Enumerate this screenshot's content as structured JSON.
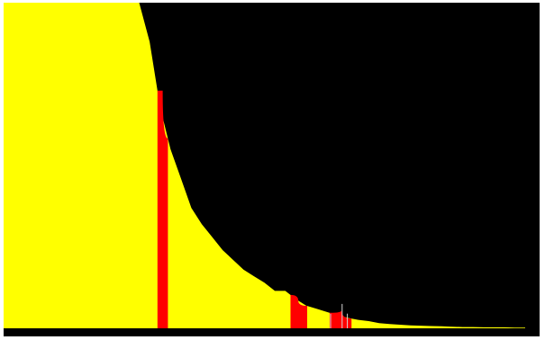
{
  "chart_data": {
    "type": "area",
    "title": "",
    "xlabel": "",
    "ylabel": "",
    "legend": "none",
    "grid": false,
    "colors": {
      "background": "#000000",
      "frame": "#ffffff",
      "baseline": "#000000",
      "spectrum": "#ffff00",
      "peaks": "#ff0000",
      "markers": "#d9d9d9"
    },
    "x": [
      0,
      0.02,
      0.04,
      0.06,
      0.08,
      0.1,
      0.12,
      0.14,
      0.16,
      0.18,
      0.2,
      0.22,
      0.24,
      0.26,
      0.28,
      0.3,
      0.32,
      0.34,
      0.36,
      0.38,
      0.4,
      0.42,
      0.44,
      0.46,
      0.48,
      0.5,
      0.52,
      0.54,
      0.56,
      0.58,
      0.6,
      0.62,
      0.64,
      0.66,
      0.68,
      0.7,
      0.72,
      0.74,
      0.76,
      0.78,
      0.8,
      0.82,
      0.84,
      0.86,
      0.88,
      0.9,
      0.92,
      0.94,
      0.96,
      0.98,
      1.0
    ],
    "series": [
      {
        "values": [
          1.0,
          1.0,
          1.0,
          1.0,
          1.0,
          1.0,
          1.0,
          1.0,
          1.0,
          1.0,
          1.0,
          1.0,
          1.0,
          1.0,
          0.88,
          0.68,
          0.55,
          0.46,
          0.37,
          0.32,
          0.28,
          0.24,
          0.21,
          0.18,
          0.16,
          0.14,
          0.115,
          0.115,
          0.09,
          0.07,
          0.06,
          0.05,
          0.04,
          0.032,
          0.026,
          0.022,
          0.016,
          0.013,
          0.011,
          0.009,
          0.008,
          0.007,
          0.006,
          0.005,
          0.004,
          0.004,
          0.003,
          0.003,
          0.003,
          0.002,
          0.002
        ]
      }
    ],
    "peaks": [
      {
        "center": 0.305,
        "left": 0.295,
        "right": 0.315,
        "height": 0.73
      },
      {
        "center": 0.565,
        "left": 0.55,
        "right": 0.582,
        "height": 0.085
      },
      {
        "center": 0.648,
        "left": 0.625,
        "right": 0.667,
        "height": 0.055
      }
    ],
    "markers": [
      {
        "x": 0.627,
        "height": 0.045
      },
      {
        "x": 0.649,
        "height": 0.075
      },
      {
        "x": 0.659,
        "height": 0.045
      }
    ],
    "xlim": [
      0,
      1
    ],
    "ylim": [
      0,
      1
    ]
  }
}
